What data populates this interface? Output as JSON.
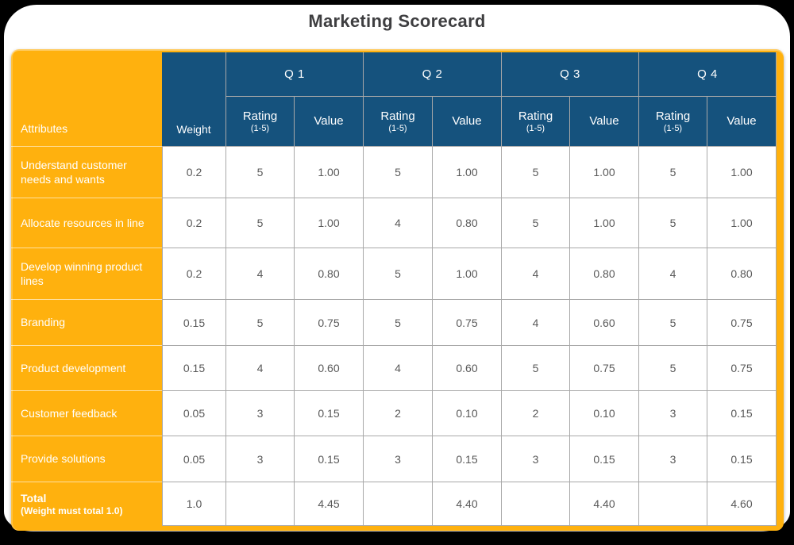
{
  "title": "Marketing Scorecard",
  "colors": {
    "orange": "#FFB10E",
    "blue": "#15527D",
    "grid": "#A8A8A8",
    "txt": "#595959",
    "title": "#3E3E40",
    "frame": "#000000"
  },
  "chart_data": {
    "type": "table",
    "title": "Marketing Scorecard",
    "column_groups": [
      "Q 1",
      "Q 2",
      "Q 3",
      "Q 4"
    ],
    "header": {
      "attributes": "Attributes",
      "weight": "Weight",
      "rating": "Rating",
      "rating_scale": "(1-5)",
      "value": "Value"
    },
    "rows": [
      {
        "attribute": "Understand customer needs and wants",
        "weight": "0.2",
        "ratings": [
          "5",
          "5",
          "5",
          "5"
        ],
        "values": [
          "1.00",
          "1.00",
          "1.00",
          "1.00"
        ]
      },
      {
        "attribute": "Allocate resources in line",
        "weight": "0.2",
        "ratings": [
          "5",
          "4",
          "5",
          "5"
        ],
        "values": [
          "1.00",
          "0.80",
          "1.00",
          "1.00"
        ]
      },
      {
        "attribute": "Develop winning product lines",
        "weight": "0.2",
        "ratings": [
          "4",
          "5",
          "4",
          "4"
        ],
        "values": [
          "0.80",
          "1.00",
          "0.80",
          "0.80"
        ]
      },
      {
        "attribute": "Branding",
        "weight": "0.15",
        "ratings": [
          "5",
          "5",
          "4",
          "5"
        ],
        "values": [
          "0.75",
          "0.75",
          "0.60",
          "0.75"
        ]
      },
      {
        "attribute": "Product development",
        "weight": "0.15",
        "ratings": [
          "4",
          "4",
          "5",
          "5"
        ],
        "values": [
          "0.60",
          "0.60",
          "0.75",
          "0.75"
        ]
      },
      {
        "attribute": "Customer feedback",
        "weight": "0.05",
        "ratings": [
          "3",
          "2",
          "2",
          "3"
        ],
        "values": [
          "0.15",
          "0.10",
          "0.10",
          "0.15"
        ]
      },
      {
        "attribute": "Provide solutions",
        "weight": "0.05",
        "ratings": [
          "3",
          "3",
          "3",
          "3"
        ],
        "values": [
          "0.15",
          "0.15",
          "0.15",
          "0.15"
        ]
      }
    ],
    "total": {
      "label": "Total",
      "note": "(Weight must total 1.0)",
      "weight": "1.0",
      "ratings": [
        "",
        "",
        "",
        ""
      ],
      "values": [
        "4.45",
        "4.40",
        "4.40",
        "4.60"
      ]
    }
  }
}
